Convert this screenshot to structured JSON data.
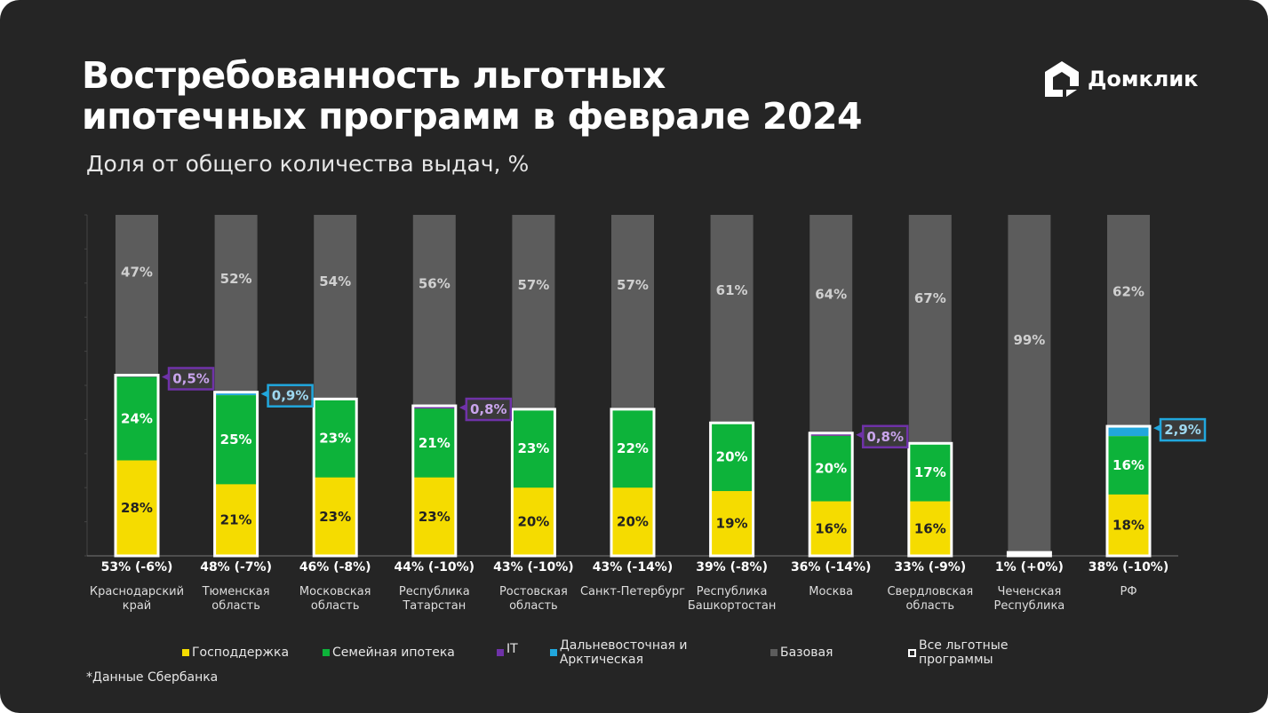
{
  "title_line1": "Востребованность льготных",
  "title_line2": "ипотечных программ в феврале 2024",
  "logo_text": "Домклик",
  "footnote": "*Данные Сбербанка",
  "colors": {
    "bg": "#252525",
    "gospod": "#f5dc00",
    "family": "#0db33a",
    "it": "#6f32a8",
    "fe": "#21a7dd",
    "base": "#5c5c5c",
    "outline": "#ffffff"
  },
  "chart_data": {
    "type": "bar",
    "stacked": true,
    "title": "Востребованность льготных ипотечных программ в феврале 2024",
    "subtitle": "Доля от общего количества выдач, %",
    "ylim": [
      0,
      100
    ],
    "categories": [
      [
        "Краснодарский",
        "край"
      ],
      [
        "Тюменская",
        "область"
      ],
      [
        "Московская",
        "область"
      ],
      [
        "Республика",
        "Татарстан"
      ],
      [
        "Ростовская",
        "область"
      ],
      [
        "Санкт-Петербург",
        ""
      ],
      [
        "Республика",
        "Башкортостан"
      ],
      [
        "Москва",
        ""
      ],
      [
        "Свердловская",
        "область"
      ],
      [
        "Чеченская",
        "Республика"
      ],
      [
        "РФ",
        ""
      ]
    ],
    "series": [
      {
        "name": "Господдержка",
        "key": "gospod",
        "values": [
          28,
          21,
          23,
          23,
          20,
          20,
          19,
          16,
          16,
          0,
          18
        ],
        "labels": [
          "28%",
          "21%",
          "23%",
          "23%",
          "20%",
          "20%",
          "19%",
          "16%",
          "16%",
          "",
          "18%"
        ]
      },
      {
        "name": "Семейная ипотека",
        "key": "family",
        "values": [
          24,
          25,
          23,
          21,
          23,
          22,
          20,
          20,
          17,
          0,
          16
        ],
        "labels": [
          "24%",
          "25%",
          "23%",
          "21%",
          "23%",
          "22%",
          "20%",
          "20%",
          "17%",
          "",
          "16%"
        ]
      },
      {
        "name": "IT",
        "key": "it",
        "values": [
          0.5,
          0,
          0,
          0.8,
          0,
          0,
          0,
          0.8,
          0,
          0,
          0
        ]
      },
      {
        "name": "Дальневосточная и Арктическая",
        "key": "fe",
        "values": [
          0,
          0.9,
          0,
          0,
          0,
          0,
          0,
          0,
          0,
          0,
          2.9
        ]
      },
      {
        "name": "Базовая",
        "key": "base",
        "values": [
          47,
          52,
          54,
          56,
          57,
          57,
          61,
          64,
          67,
          99,
          62
        ],
        "labels": [
          "47%",
          "52%",
          "54%",
          "56%",
          "57%",
          "57%",
          "61%",
          "64%",
          "67%",
          "99%",
          "62%"
        ]
      }
    ],
    "all_programs": {
      "name": "Все льготные программы",
      "values": [
        53,
        48,
        46,
        44,
        43,
        43,
        39,
        36,
        33,
        1,
        38
      ],
      "labels": [
        "53% (-6%)",
        "48% (-7%)",
        "46% (-8%)",
        "44% (-10%)",
        "43% (-10%)",
        "43% (-14%)",
        "39% (-8%)",
        "36% (-14%)",
        "33% (-9%)",
        "1% (+0%)",
        "38% (-10%)"
      ]
    },
    "callouts": [
      {
        "index": 0,
        "series": "it",
        "label": "0,5%"
      },
      {
        "index": 1,
        "series": "fe",
        "label": "0,9%"
      },
      {
        "index": 3,
        "series": "it",
        "label": "0,8%"
      },
      {
        "index": 7,
        "series": "it",
        "label": "0,8%"
      },
      {
        "index": 10,
        "series": "fe",
        "label": "2,9%"
      }
    ],
    "legend_position": "bottom"
  }
}
